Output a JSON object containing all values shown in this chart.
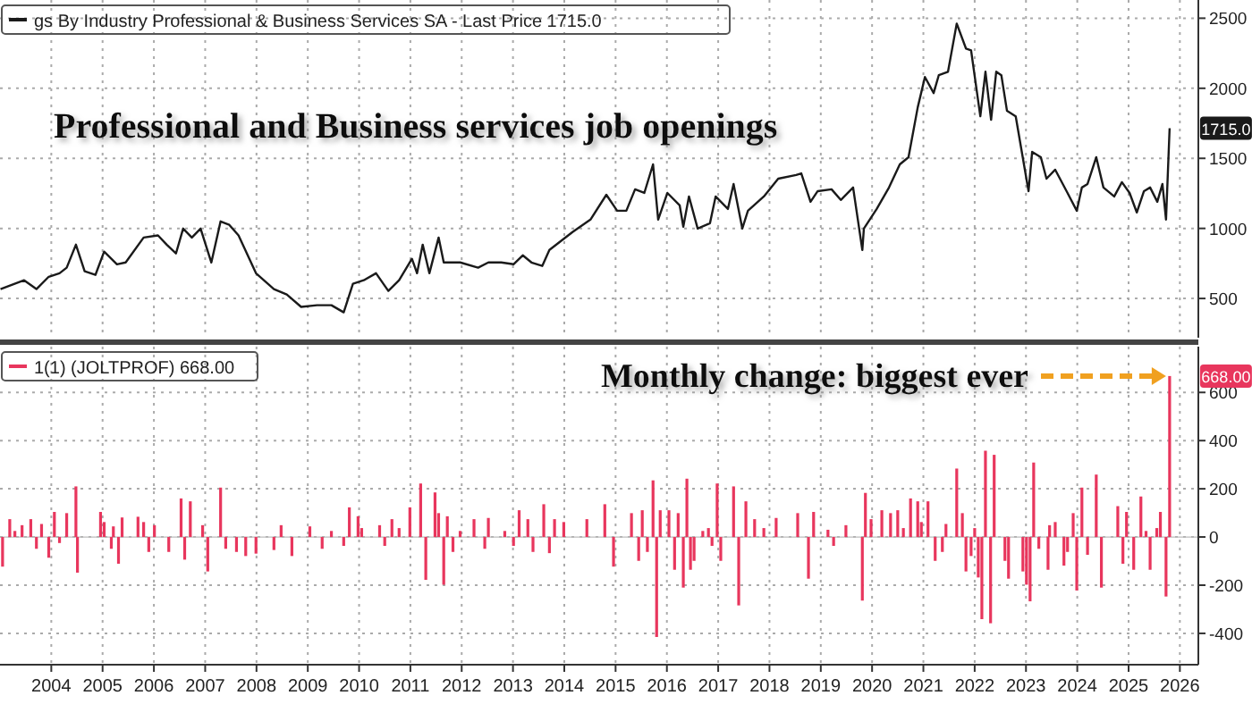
{
  "chart_data": [
    {
      "type": "line",
      "title": "Professional and Business services job openings",
      "legend": "top left",
      "grid": true,
      "tick_labels": "y",
      "xlim": [
        2003.5,
        2026.86
      ],
      "ylim": [
        220,
        2630
      ],
      "yticks": [
        500,
        1000,
        1500,
        2000,
        2500
      ],
      "annotations": [
        {
          "text": "1715.0",
          "x": 2026.3,
          "y": 1715
        }
      ],
      "series": [
        {
          "name": "gs By Industry Professional & Business Services SA - Last Price 1715.0",
          "color": "#1a1a1a",
          "x": [
            2003.51,
            2003.97,
            2004.21,
            2004.45,
            2004.66,
            2004.8,
            2004.98,
            2005.15,
            2005.36,
            2005.53,
            2005.78,
            2005.95,
            2006.3,
            2006.58,
            2006.75,
            2006.93,
            2007.07,
            2007.24,
            2007.41,
            2007.62,
            2007.8,
            2007.97,
            2008.15,
            2008.49,
            2008.84,
            2009.09,
            2009.37,
            2009.68,
            2009.96,
            2010.2,
            2010.38,
            2010.59,
            2010.83,
            2011.07,
            2011.28,
            2011.53,
            2011.63,
            2011.74,
            2011.87,
            2012.05,
            2012.15,
            2012.47,
            2012.82,
            2013.02,
            2013.27,
            2013.51,
            2013.69,
            2013.86,
            2014.07,
            2014.21,
            2014.66,
            2015.01,
            2015.32,
            2015.53,
            2015.71,
            2015.88,
            2016.06,
            2016.23,
            2016.33,
            2016.51,
            2016.75,
            2016.82,
            2016.93,
            2017.1,
            2017.34,
            2017.45,
            2017.69,
            2017.8,
            2017.97,
            2018.08,
            2018.39,
            2018.67,
            2019.02,
            2019.12,
            2019.3,
            2019.44,
            2019.71,
            2019.89,
            2020.13,
            2020.31,
            2020.34,
            2020.59,
            2020.83,
            2021.04,
            2021.21,
            2021.39,
            2021.53,
            2021.7,
            2021.8,
            2021.98,
            2022.15,
            2022.33,
            2022.43,
            2022.61,
            2022.71,
            2022.82,
            2022.92,
            2023.02,
            2023.13,
            2023.3,
            2023.55,
            2023.62,
            2023.79,
            2023.9,
            2024.07,
            2024.31,
            2024.49,
            2024.59,
            2024.7,
            2024.87,
            2025.01,
            2025.22,
            2025.37,
            2025.52,
            2025.66,
            2025.8,
            2025.92,
            2026.06,
            2026.16,
            2026.23,
            2026.3
          ],
          "values": [
            567,
            630,
            567,
            655,
            680,
            720,
            884,
            694,
            668,
            834,
            744,
            757,
            935,
            950,
            884,
            821,
            999,
            935,
            999,
            757,
            1050,
            1025,
            950,
            680,
            567,
            528,
            440,
            452,
            452,
            401,
            605,
            630,
            680,
            554,
            630,
            783,
            680,
            884,
            680,
            935,
            757,
            757,
            720,
            757,
            757,
            744,
            808,
            757,
            732,
            846,
            974,
            1063,
            1240,
            1126,
            1126,
            1279,
            1253,
            1457,
            1063,
            1253,
            1164,
            1012,
            1228,
            999,
            1037,
            1228,
            1139,
            1317,
            999,
            1126,
            1228,
            1355,
            1381,
            1393,
            1190,
            1266,
            1279,
            1203,
            1292,
            846,
            999,
            1139,
            1292,
            1457,
            1508,
            1864,
            2080,
            1966,
            2093,
            2118,
            2462,
            2284,
            2271,
            1800,
            2118,
            1775,
            2118,
            2093,
            1839,
            1800,
            1266,
            1546,
            1508,
            1355,
            1419,
            1253,
            1126,
            1292,
            1317,
            1508,
            1292,
            1228,
            1330,
            1253,
            1114,
            1266,
            1292,
            1190,
            1317,
            1063,
            1715
          ]
        }
      ]
    },
    {
      "type": "bar",
      "title": "Monthly change: biggest ever",
      "legend": "top left",
      "grid": true,
      "xlim": [
        2003.5,
        2026.86
      ],
      "ylim": [
        -530,
        790
      ],
      "yticks": [
        -400,
        -200,
        0,
        200,
        400,
        600
      ],
      "xticks": [
        {
          "value": 2004.5,
          "label": "2004"
        },
        {
          "value": 2005.5,
          "label": "2005"
        },
        {
          "value": 2006.5,
          "label": "2006"
        },
        {
          "value": 2007.5,
          "label": "2007"
        },
        {
          "value": 2008.5,
          "label": "2008"
        },
        {
          "value": 2009.5,
          "label": "2009"
        },
        {
          "value": 2010.5,
          "label": "2010"
        },
        {
          "value": 2011.5,
          "label": "2011"
        },
        {
          "value": 2012.5,
          "label": "2012"
        },
        {
          "value": 2013.5,
          "label": "2013"
        },
        {
          "value": 2014.5,
          "label": "2014"
        },
        {
          "value": 2015.5,
          "label": "2015"
        },
        {
          "value": 2016.5,
          "label": "2016"
        },
        {
          "value": 2017.5,
          "label": "2017"
        },
        {
          "value": 2018.5,
          "label": "2018"
        },
        {
          "value": 2019.5,
          "label": "2019"
        },
        {
          "value": 2020.5,
          "label": "2020"
        },
        {
          "value": 2021.5,
          "label": "2021"
        },
        {
          "value": 2022.5,
          "label": "2022"
        },
        {
          "value": 2023.5,
          "label": "2023"
        },
        {
          "value": 2024.5,
          "label": "2024"
        },
        {
          "value": 2025.5,
          "label": "2025"
        },
        {
          "value": 2026.5,
          "label": "2026"
        }
      ],
      "annotations": [
        {
          "text": "668.00",
          "x": 2026.3,
          "y": 668
        }
      ],
      "series": [
        {
          "name": "1(1) (JOLTPROF) 668.00",
          "color": "#e8365d",
          "x": [
            2003.55,
            2003.69,
            2003.79,
            2003.93,
            2004.1,
            2004.21,
            2004.31,
            2004.45,
            2004.56,
            2004.66,
            2004.8,
            2004.98,
            2005.01,
            2005.46,
            2005.53,
            2005.67,
            2005.71,
            2005.81,
            2005.88,
            2006.19,
            2006.3,
            2006.4,
            2006.51,
            2006.79,
            2007.03,
            2007.1,
            2007.21,
            2007.45,
            2007.55,
            2007.8,
            2007.9,
            2008.11,
            2008.29,
            2008.49,
            2008.84,
            2008.98,
            2009.19,
            2009.54,
            2009.78,
            2009.96,
            2010.2,
            2010.31,
            2010.48,
            2010.55,
            2010.9,
            2011.0,
            2011.14,
            2011.28,
            2011.49,
            2011.7,
            2011.8,
            2011.98,
            2012.05,
            2012.15,
            2012.22,
            2012.33,
            2012.47,
            2012.74,
            2012.95,
            2013.02,
            2013.34,
            2013.51,
            2013.62,
            2013.79,
            2013.89,
            2014.1,
            2014.21,
            2014.31,
            2014.49,
            2014.94,
            2015.29,
            2015.46,
            2015.81,
            2015.95,
            2016.02,
            2016.12,
            2016.23,
            2016.3,
            2016.37,
            2016.54,
            2016.65,
            2016.72,
            2016.82,
            2016.89,
            2016.96,
            2017.03,
            2017.2,
            2017.31,
            2017.38,
            2017.48,
            2017.55,
            2017.8,
            2017.9,
            2018.04,
            2018.21,
            2018.39,
            2018.63,
            2019.05,
            2019.26,
            2019.36,
            2019.64,
            2019.75,
            2019.99,
            2020.31,
            2020.37,
            2020.48,
            2020.69,
            2020.86,
            2021.0,
            2021.11,
            2021.25,
            2021.39,
            2021.46,
            2021.59,
            2021.73,
            2021.87,
            2021.94,
            2022.15,
            2022.26,
            2022.33,
            2022.43,
            2022.5,
            2022.57,
            2022.64,
            2022.71,
            2022.81,
            2022.88,
            2023.09,
            2023.16,
            2023.44,
            2023.51,
            2023.58,
            2023.65,
            2023.75,
            2023.93,
            2023.96,
            2024.07,
            2024.24,
            2024.31,
            2024.42,
            2024.49,
            2024.59,
            2024.7,
            2024.87,
            2024.97,
            2025.29,
            2025.39,
            2025.46,
            2025.6,
            2025.74,
            2025.84,
            2025.92,
            2026.05,
            2026.12,
            2026.23,
            2026.3
          ],
          "values": [
            -123,
            74,
            25,
            49,
            74,
            -49,
            54,
            -86,
            104,
            -25,
            99,
            210,
            -148,
            104,
            62,
            -49,
            44,
            -111,
            81,
            84,
            62,
            -62,
            49,
            -62,
            160,
            -94,
            148,
            49,
            -143,
            205,
            -49,
            -62,
            -79,
            -69,
            -54,
            49,
            -79,
            44,
            -49,
            25,
            -37,
            123,
            86,
            37,
            49,
            -37,
            74,
            37,
            123,
            222,
            -178,
            185,
            99,
            -198,
            86,
            -62,
            25,
            74,
            -49,
            79,
            25,
            -37,
            111,
            74,
            -62,
            136,
            -67,
            74,
            62,
            74,
            136,
            -123,
            99,
            -99,
            111,
            -62,
            235,
            -415,
            111,
            111,
            -136,
            99,
            -210,
            242,
            -136,
            -99,
            25,
            37,
            -37,
            222,
            -99,
            210,
            -284,
            148,
            74,
            37,
            79,
            99,
            -173,
            104,
            30,
            -37,
            49,
            -264,
            183,
            74,
            111,
            99,
            111,
            37,
            160,
            148,
            62,
            148,
            -99,
            -62,
            54,
            284,
            99,
            -143,
            -79,
            37,
            -168,
            -341,
            358,
            -358,
            341,
            -99,
            -173,
            -143,
            -198,
            -267,
            309,
            -49,
            -136,
            49,
            62,
            -119,
            -62,
            99,
            -222,
            205,
            -74,
            259,
            -210,
            128,
            -111,
            104,
            -136,
            168,
            25,
            -136,
            37,
            104,
            -247,
            668
          ]
        }
      ]
    }
  ]
}
